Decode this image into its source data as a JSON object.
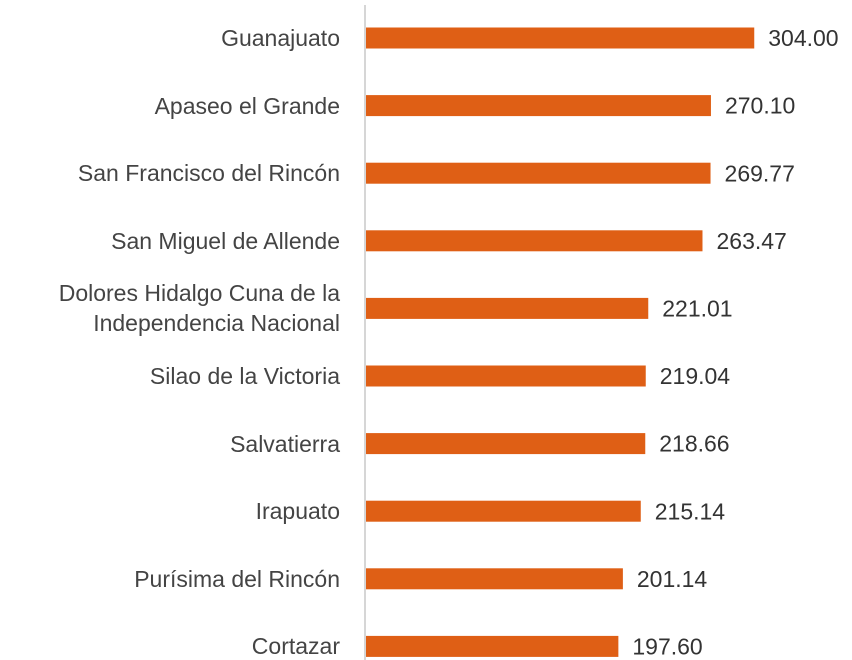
{
  "chart_data": {
    "type": "bar",
    "orientation": "horizontal",
    "categories": [
      "Guanajuato",
      "Apaseo el Grande",
      "San Francisco del Rincón",
      "San Miguel de Allende",
      "Dolores Hidalgo Cuna de la Independencia Nacional",
      "Silao de la Victoria",
      "Salvatierra",
      "Irapuato",
      "Purísima del Rincón",
      "Cortazar"
    ],
    "values": [
      304,
      270.1,
      269.77,
      263.47,
      221.01,
      219.04,
      218.66,
      215.14,
      201.14,
      197.6
    ],
    "value_labels": [
      "304.00",
      "270.10",
      "269.77",
      "263.47",
      "221.01",
      "219.04",
      "218.66",
      "215.14",
      "201.14",
      "197.60"
    ],
    "color": "#df5f15",
    "xlim": [
      0,
      350
    ]
  }
}
